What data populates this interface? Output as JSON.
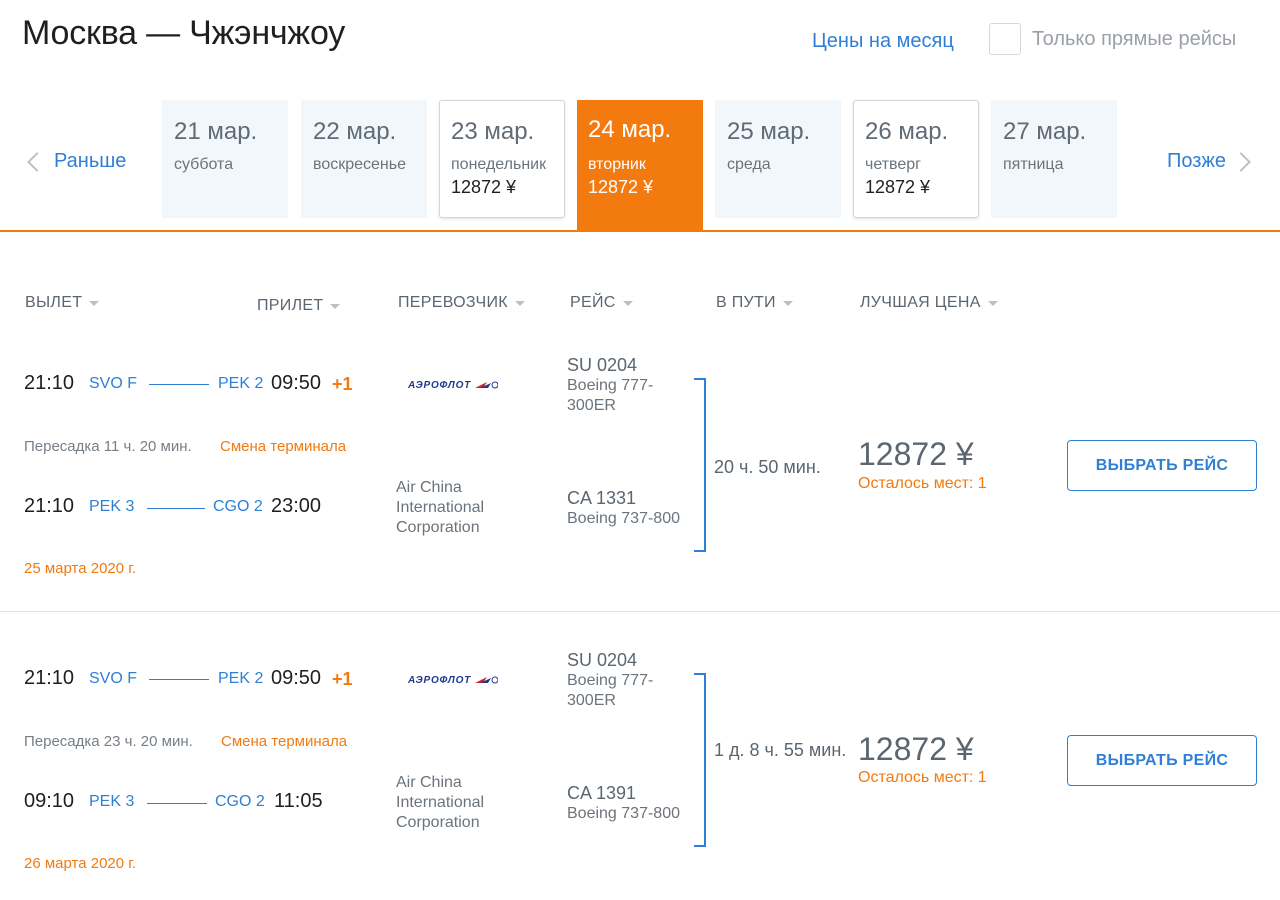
{
  "header": {
    "title": "Москва — Чжэнчжоу",
    "month_prices": "Цены на месяц",
    "direct_only": "Только прямые рейсы"
  },
  "nav": {
    "prev": "Раньше",
    "next": "Позже"
  },
  "days": [
    {
      "date": "21 мар.",
      "weekday": "суббота",
      "price": ""
    },
    {
      "date": "22 мар.",
      "weekday": "воскресенье",
      "price": ""
    },
    {
      "date": "23 мар.",
      "weekday": "понедельник",
      "price": "12872 ¥"
    },
    {
      "date": "24 мар.",
      "weekday": "вторник",
      "price": "12872 ¥"
    },
    {
      "date": "25 мар.",
      "weekday": "среда",
      "price": ""
    },
    {
      "date": "26 мар.",
      "weekday": "четверг",
      "price": "12872 ¥"
    },
    {
      "date": "27 мар.",
      "weekday": "пятница",
      "price": ""
    }
  ],
  "columns": {
    "departure": "ВЫЛЕТ",
    "arrival": "ПРИЛЕТ",
    "carrier": "ПЕРЕВОЗЧИК",
    "flight": "РЕЙС",
    "duration": "В ПУТИ",
    "best_price": "ЛУЧШАЯ ЦЕНА"
  },
  "results": [
    {
      "leg1": {
        "dep_time": "21:10",
        "dep_airport": "SVO F",
        "arr_airport": "PEK 2",
        "arr_time": "09:50",
        "day_offset": "+1",
        "carrier_logo": "АЭРОФЛОТ",
        "flight_no": "SU 0204",
        "aircraft": "Boeing 777-300ER"
      },
      "transfer": "Пересадка 11 ч. 20 мин.",
      "transfer_note": "Смена терминала",
      "leg2": {
        "dep_time": "21:10",
        "dep_airport": "PEK 3",
        "arr_airport": "CGO 2",
        "arr_time": "23:00",
        "carrier": "Air China International Corporation",
        "flight_no": "CA 1331",
        "aircraft": "Boeing 737-800"
      },
      "arrival_date": "25 марта 2020 г.",
      "duration": "20 ч. 50 мин.",
      "price": "12872 ¥",
      "seats": "Осталось мест: 1",
      "button": "ВЫБРАТЬ РЕЙС"
    },
    {
      "leg1": {
        "dep_time": "21:10",
        "dep_airport": "SVO F",
        "arr_airport": "PEK 2",
        "arr_time": "09:50",
        "day_offset": "+1",
        "carrier_logo": "АЭРОФЛОТ",
        "flight_no": "SU 0204",
        "aircraft": "Boeing 777-300ER"
      },
      "transfer": "Пересадка 23 ч. 20 мин.",
      "transfer_note": "Смена терминала",
      "leg2": {
        "dep_time": "09:10",
        "dep_airport": "PEK 3",
        "arr_airport": "CGO 2",
        "arr_time": "11:05",
        "carrier": "Air China International Corporation",
        "flight_no": "CA 1391",
        "aircraft": "Boeing 737-800"
      },
      "arrival_date": "26 марта 2020 г.",
      "duration": "1 д. 8 ч. 55 мин.",
      "price": "12872 ¥",
      "seats": "Осталось мест: 1",
      "button": "ВЫБРАТЬ РЕЙС"
    }
  ],
  "colors": {
    "accent_orange": "#f27a0f",
    "link_blue": "#2f7fd6",
    "day_bg": "#f2f7fc"
  }
}
